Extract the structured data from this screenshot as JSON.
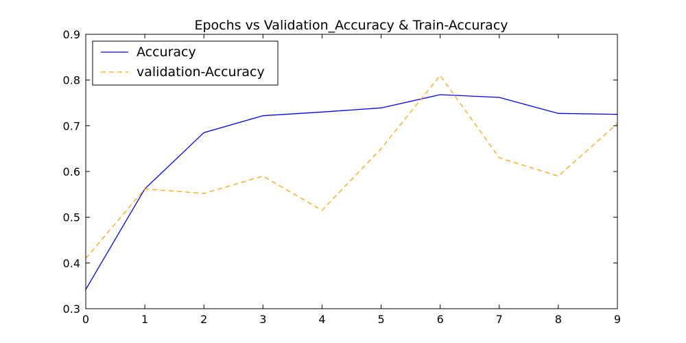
{
  "chart_data": {
    "type": "line",
    "title": "Epochs vs Validation_Accuracy & Train-Accuracy",
    "xlabel": "",
    "ylabel": "",
    "x": [
      0,
      1,
      2,
      3,
      4,
      5,
      6,
      7,
      8,
      9
    ],
    "xlim": [
      0,
      9
    ],
    "ylim": [
      0.3,
      0.9
    ],
    "xticks": [
      "0",
      "1",
      "2",
      "3",
      "4",
      "5",
      "6",
      "7",
      "8",
      "9"
    ],
    "yticks": [
      "0.3",
      "0.4",
      "0.5",
      "0.6",
      "0.7",
      "0.8",
      "0.9"
    ],
    "grid": false,
    "legend_position": "top-left",
    "series": [
      {
        "name": "Accuracy",
        "color": "#0000ff",
        "style": "solid",
        "values": [
          0.342,
          0.562,
          0.685,
          0.722,
          0.73,
          0.739,
          0.768,
          0.762,
          0.727,
          0.725
        ]
      },
      {
        "name": "validation-Accuracy",
        "color": "#ffa500",
        "style": "dashed",
        "values": [
          0.41,
          0.562,
          0.552,
          0.59,
          0.515,
          0.65,
          0.81,
          0.63,
          0.59,
          0.705
        ]
      }
    ]
  }
}
